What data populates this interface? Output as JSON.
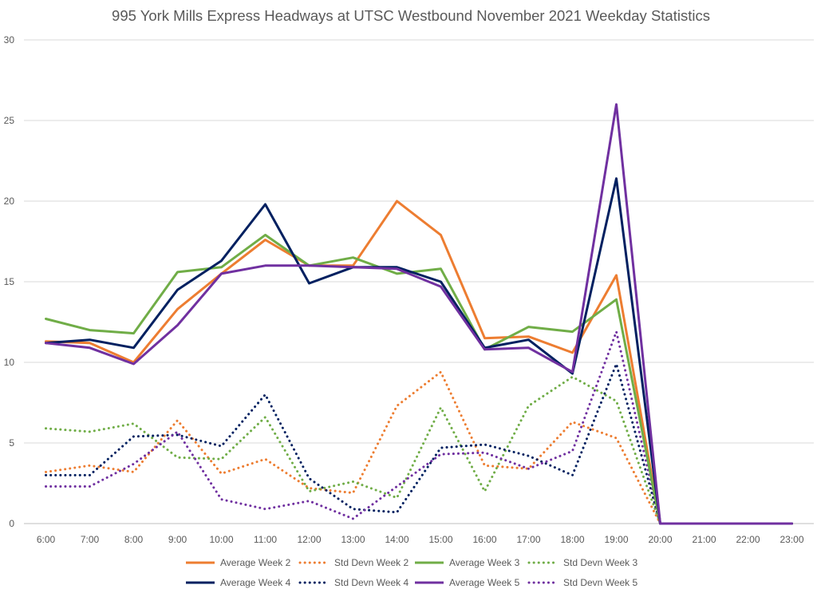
{
  "chart_data": {
    "type": "line",
    "title": "995 York Mills Express Headways at UTSC Westbound November 2021 Weekday Statistics",
    "xlabel": "",
    "ylabel": "",
    "ylim": [
      0,
      30
    ],
    "yticks": [
      "0",
      "5",
      "10",
      "15",
      "20",
      "25",
      "30"
    ],
    "grid": "horizontal",
    "legend_position": "bottom",
    "categories": [
      "6:00",
      "7:00",
      "8:00",
      "9:00",
      "10:00",
      "11:00",
      "12:00",
      "13:00",
      "14:00",
      "15:00",
      "16:00",
      "17:00",
      "18:00",
      "19:00",
      "20:00",
      "21:00",
      "22:00",
      "23:00"
    ],
    "series": [
      {
        "name": "Average Week 2",
        "color": "#ed7d31",
        "style": "solid",
        "values": [
          11.3,
          11.2,
          10.0,
          13.3,
          15.5,
          17.6,
          16.0,
          16.0,
          20.0,
          17.9,
          11.5,
          11.6,
          10.6,
          15.4,
          0,
          0,
          0,
          0
        ]
      },
      {
        "name": "Std Devn Week 2",
        "color": "#ed7d31",
        "style": "dotted",
        "values": [
          3.2,
          3.6,
          3.2,
          6.4,
          3.1,
          4.0,
          2.2,
          1.9,
          7.3,
          9.4,
          3.6,
          3.4,
          6.3,
          5.3,
          0,
          0,
          0,
          0
        ]
      },
      {
        "name": "Average Week 3",
        "color": "#70ad47",
        "style": "solid",
        "values": [
          12.7,
          12.0,
          11.8,
          15.6,
          15.9,
          17.9,
          16.0,
          16.5,
          15.5,
          15.8,
          10.8,
          12.2,
          11.9,
          13.9,
          0,
          0,
          0,
          0
        ]
      },
      {
        "name": "Std Devn Week 3",
        "color": "#70ad47",
        "style": "dotted",
        "values": [
          5.9,
          5.7,
          6.2,
          4.1,
          4.0,
          6.6,
          2.0,
          2.6,
          1.6,
          7.2,
          2.0,
          7.3,
          9.1,
          7.6,
          0,
          0,
          0,
          0
        ]
      },
      {
        "name": "Average Week 4",
        "color": "#002060",
        "style": "solid",
        "values": [
          11.2,
          11.4,
          10.9,
          14.5,
          16.3,
          19.8,
          14.9,
          15.9,
          15.9,
          15.0,
          10.9,
          11.4,
          9.3,
          21.4,
          0,
          0,
          0,
          0
        ]
      },
      {
        "name": "Std Devn Week 4",
        "color": "#002060",
        "style": "dotted",
        "values": [
          3.0,
          3.0,
          5.4,
          5.5,
          4.8,
          8.0,
          2.8,
          0.9,
          0.7,
          4.7,
          4.9,
          4.2,
          3.0,
          9.9,
          0,
          0,
          0,
          0
        ]
      },
      {
        "name": "Average Week 5",
        "color": "#7030a0",
        "style": "solid",
        "values": [
          11.2,
          10.9,
          9.9,
          12.3,
          15.5,
          16.0,
          16.0,
          15.9,
          15.8,
          14.7,
          10.8,
          10.9,
          9.4,
          26.0,
          0,
          0,
          0,
          0
        ]
      },
      {
        "name": "Std Devn Week 5",
        "color": "#7030a0",
        "style": "dotted",
        "values": [
          2.3,
          2.3,
          3.7,
          5.7,
          1.5,
          0.9,
          1.4,
          0.3,
          2.3,
          4.3,
          4.4,
          3.4,
          4.5,
          11.9,
          0,
          0,
          0,
          0
        ]
      }
    ]
  }
}
